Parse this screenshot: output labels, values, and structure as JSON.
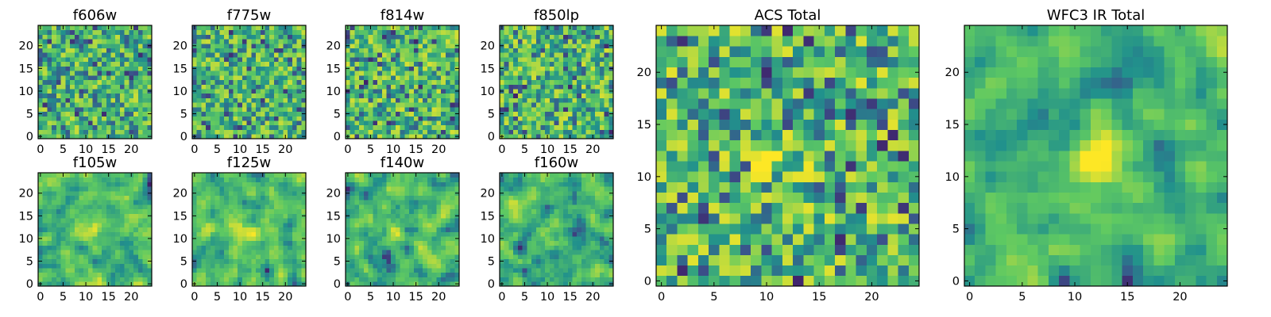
{
  "figure": {
    "colormap": "viridis",
    "colormap_stops": [
      "#440154",
      "#3b528b",
      "#21918c",
      "#5ec962",
      "#fde725"
    ]
  },
  "chart_data": [
    {
      "type": "heatmap",
      "title": "f606w",
      "grid_size": [
        25,
        25
      ],
      "seed": 11,
      "smoothing": 0,
      "bias": 0.8,
      "blob": {
        "center": [
          12,
          12
        ],
        "strength": 0.0
      },
      "x_ticks": [
        0,
        5,
        10,
        15,
        20
      ],
      "y_ticks": [
        0,
        5,
        10,
        15,
        20
      ],
      "xlim": [
        -0.5,
        24.5
      ],
      "ylim": [
        -0.5,
        24.5
      ]
    },
    {
      "type": "heatmap",
      "title": "f775w",
      "grid_size": [
        25,
        25
      ],
      "seed": 23,
      "smoothing": 0,
      "bias": 0.8,
      "blob": {
        "center": [
          12,
          12
        ],
        "strength": 0.0
      },
      "x_ticks": [
        0,
        5,
        10,
        15,
        20
      ],
      "y_ticks": [
        0,
        5,
        10,
        15,
        20
      ],
      "xlim": [
        -0.5,
        24.5
      ],
      "ylim": [
        -0.5,
        24.5
      ]
    },
    {
      "type": "heatmap",
      "title": "f814w",
      "grid_size": [
        25,
        25
      ],
      "seed": 37,
      "smoothing": 0,
      "bias": 0.85,
      "blob": {
        "center": [
          12,
          12
        ],
        "strength": 0.0
      },
      "x_ticks": [
        0,
        5,
        10,
        15,
        20
      ],
      "y_ticks": [
        0,
        5,
        10,
        15,
        20
      ],
      "xlim": [
        -0.5,
        24.5
      ],
      "ylim": [
        -0.5,
        24.5
      ]
    },
    {
      "type": "heatmap",
      "title": "f850lp",
      "grid_size": [
        25,
        25
      ],
      "seed": 41,
      "smoothing": 0,
      "bias": 0.85,
      "blob": {
        "center": [
          12,
          12
        ],
        "strength": 0.0
      },
      "x_ticks": [
        0,
        5,
        10,
        15,
        20
      ],
      "y_ticks": [
        0,
        5,
        10,
        15,
        20
      ],
      "xlim": [
        -0.5,
        24.5
      ],
      "ylim": [
        -0.5,
        24.5
      ]
    },
    {
      "type": "heatmap",
      "title": "f105w",
      "grid_size": [
        25,
        25
      ],
      "seed": 53,
      "smoothing": 1,
      "bias": 0.85,
      "blob": {
        "center": [
          11,
          12
        ],
        "strength": 0.12
      },
      "x_ticks": [
        0,
        5,
        10,
        15,
        20
      ],
      "y_ticks": [
        0,
        5,
        10,
        15,
        20
      ],
      "xlim": [
        -0.5,
        24.5
      ],
      "ylim": [
        -0.5,
        24.5
      ]
    },
    {
      "type": "heatmap",
      "title": "f125w",
      "grid_size": [
        25,
        25
      ],
      "seed": 67,
      "smoothing": 1,
      "bias": 0.8,
      "blob": {
        "center": [
          11,
          12
        ],
        "strength": 0.14
      },
      "x_ticks": [
        0,
        5,
        10,
        15,
        20
      ],
      "y_ticks": [
        0,
        5,
        10,
        15,
        20
      ],
      "xlim": [
        -0.5,
        24.5
      ],
      "ylim": [
        -0.5,
        24.5
      ]
    },
    {
      "type": "heatmap",
      "title": "f140w",
      "grid_size": [
        25,
        25
      ],
      "seed": 79,
      "smoothing": 1,
      "bias": 0.8,
      "blob": {
        "center": [
          11,
          12
        ],
        "strength": 0.14
      },
      "x_ticks": [
        0,
        5,
        10,
        15,
        20
      ],
      "y_ticks": [
        0,
        5,
        10,
        15,
        20
      ],
      "xlim": [
        -0.5,
        24.5
      ],
      "ylim": [
        -0.5,
        24.5
      ]
    },
    {
      "type": "heatmap",
      "title": "f160w",
      "grid_size": [
        25,
        25
      ],
      "seed": 83,
      "smoothing": 1,
      "bias": 0.8,
      "blob": {
        "center": [
          12,
          11
        ],
        "strength": 0.14
      },
      "x_ticks": [
        0,
        5,
        10,
        15,
        20
      ],
      "y_ticks": [
        0,
        5,
        10,
        15,
        20
      ],
      "xlim": [
        -0.5,
        24.5
      ],
      "ylim": [
        -0.5,
        24.5
      ]
    },
    {
      "type": "heatmap",
      "title": "ACS Total",
      "grid_size": [
        25,
        25
      ],
      "seed": 97,
      "smoothing": 0,
      "bias": 0.9,
      "blob": {
        "center": [
          11,
          11
        ],
        "strength": 0.18
      },
      "x_ticks": [
        0,
        5,
        10,
        15,
        20
      ],
      "y_ticks": [
        0,
        5,
        10,
        15,
        20
      ],
      "xlim": [
        -0.5,
        24.5
      ],
      "ylim": [
        -0.5,
        24.5
      ]
    },
    {
      "type": "heatmap",
      "title": "WFC3 IR Total",
      "grid_size": [
        25,
        25
      ],
      "seed": 101,
      "smoothing": 1,
      "bias": 0.75,
      "blob": {
        "center": [
          12,
          12
        ],
        "strength": 0.25
      },
      "x_ticks": [
        0,
        5,
        10,
        15,
        20
      ],
      "y_ticks": [
        0,
        5,
        10,
        15,
        20
      ],
      "xlim": [
        -0.5,
        24.5
      ],
      "ylim": [
        -0.5,
        24.5
      ]
    }
  ]
}
